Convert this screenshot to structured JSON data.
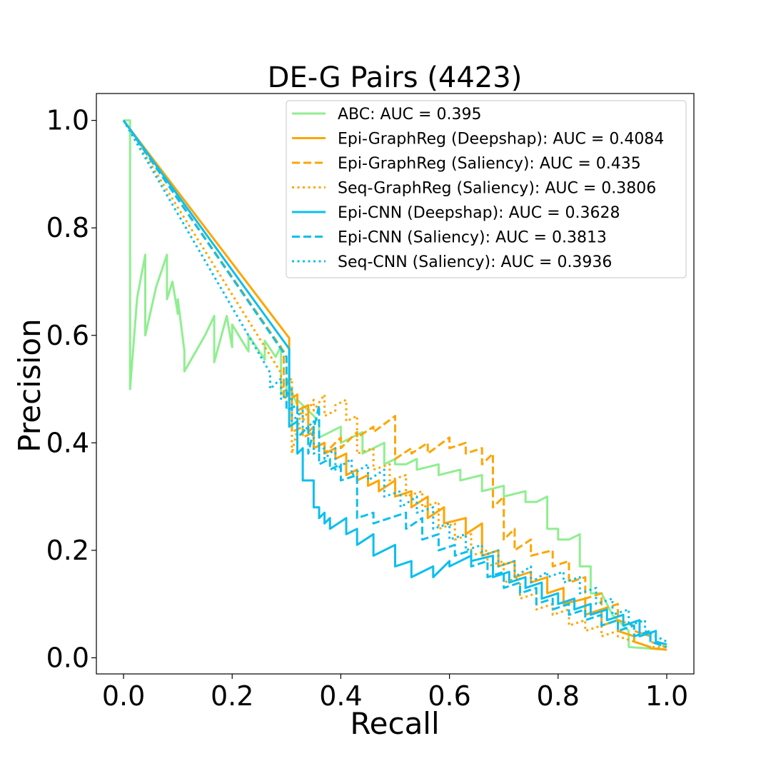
{
  "chart_data": {
    "type": "line",
    "title": "DE-G Pairs (4423)",
    "xlabel": "Recall",
    "ylabel": "Precision",
    "xlim": [
      -0.05,
      1.05
    ],
    "ylim": [
      -0.03,
      1.05
    ],
    "xticks": [
      "0.0",
      "0.2",
      "0.4",
      "0.6",
      "0.8",
      "1.0"
    ],
    "yticks": [
      "0.0",
      "0.2",
      "0.4",
      "0.6",
      "0.8",
      "1.0"
    ],
    "grid": false,
    "legend_position": "top-right",
    "series": [
      {
        "name": "ABC: AUC = 0.395",
        "color": "#90ee90",
        "style": "solid",
        "x": [
          0.0,
          0.012,
          0.012,
          0.025,
          0.04,
          0.04,
          0.06,
          0.08,
          0.08,
          0.09,
          0.1,
          0.1,
          0.112,
          0.112,
          0.15,
          0.167,
          0.167,
          0.19,
          0.2,
          0.2,
          0.23,
          0.23,
          0.26,
          0.26,
          0.28,
          0.29,
          0.29,
          0.3,
          0.3,
          0.32,
          0.32,
          0.34,
          0.36,
          0.36,
          0.38,
          0.4,
          0.4,
          0.42,
          0.44,
          0.44,
          0.46,
          0.48,
          0.48,
          0.5,
          0.5,
          0.52,
          0.54,
          0.54,
          0.56,
          0.58,
          0.58,
          0.6,
          0.62,
          0.62,
          0.64,
          0.66,
          0.66,
          0.68,
          0.7,
          0.7,
          0.72,
          0.74,
          0.74,
          0.76,
          0.78,
          0.78,
          0.8,
          0.8,
          0.82,
          0.84,
          0.84,
          0.86,
          0.86,
          0.88,
          0.9,
          0.92,
          0.93,
          0.93,
          0.96,
          1.0
        ],
        "y": [
          1.0,
          1.0,
          0.5,
          0.67,
          0.75,
          0.6,
          0.69,
          0.75,
          0.667,
          0.7,
          0.64,
          0.667,
          0.571,
          0.533,
          0.6,
          0.636,
          0.55,
          0.636,
          0.578,
          0.62,
          0.57,
          0.6,
          0.555,
          0.59,
          0.56,
          0.58,
          0.49,
          0.5,
          0.52,
          0.47,
          0.48,
          0.46,
          0.44,
          0.41,
          0.42,
          0.43,
          0.4,
          0.41,
          0.42,
          0.38,
          0.39,
          0.4,
          0.36,
          0.37,
          0.36,
          0.36,
          0.37,
          0.35,
          0.355,
          0.36,
          0.34,
          0.345,
          0.35,
          0.33,
          0.335,
          0.34,
          0.31,
          0.315,
          0.32,
          0.3,
          0.305,
          0.31,
          0.29,
          0.29,
          0.3,
          0.24,
          0.24,
          0.22,
          0.22,
          0.23,
          0.17,
          0.17,
          0.12,
          0.12,
          0.08,
          0.06,
          0.05,
          0.02,
          0.018,
          0.015
        ]
      },
      {
        "name": "Epi-GraphReg (Deepshap): AUC = 0.4084",
        "color": "#ffa500",
        "style": "solid",
        "x": [
          0.0,
          0.305,
          0.305,
          0.32,
          0.32,
          0.34,
          0.34,
          0.35,
          0.35,
          0.37,
          0.37,
          0.39,
          0.39,
          0.41,
          0.41,
          0.43,
          0.43,
          0.45,
          0.45,
          0.47,
          0.47,
          0.5,
          0.5,
          0.53,
          0.53,
          0.56,
          0.56,
          0.59,
          0.59,
          0.63,
          0.63,
          0.66,
          0.66,
          0.69,
          0.69,
          0.72,
          0.72,
          0.75,
          0.75,
          0.78,
          0.78,
          0.81,
          0.81,
          0.85,
          0.85,
          0.88,
          0.88,
          0.91,
          0.91,
          0.94,
          0.94,
          0.97,
          0.97,
          1.0
        ],
        "y": [
          1.0,
          0.595,
          0.48,
          0.49,
          0.46,
          0.47,
          0.42,
          0.43,
          0.39,
          0.4,
          0.38,
          0.39,
          0.37,
          0.38,
          0.34,
          0.35,
          0.33,
          0.34,
          0.32,
          0.33,
          0.31,
          0.33,
          0.3,
          0.31,
          0.28,
          0.3,
          0.26,
          0.28,
          0.25,
          0.26,
          0.23,
          0.25,
          0.19,
          0.2,
          0.17,
          0.18,
          0.15,
          0.16,
          0.14,
          0.15,
          0.12,
          0.13,
          0.1,
          0.11,
          0.08,
          0.09,
          0.06,
          0.07,
          0.05,
          0.04,
          0.03,
          0.02,
          0.018,
          0.015
        ]
      },
      {
        "name": "Epi-GraphReg (Saliency): AUC = 0.435",
        "color": "#ffa500",
        "style": "dashed",
        "x": [
          0.0,
          0.295,
          0.295,
          0.31,
          0.31,
          0.33,
          0.33,
          0.35,
          0.35,
          0.37,
          0.37,
          0.4,
          0.4,
          0.43,
          0.43,
          0.46,
          0.46,
          0.5,
          0.5,
          0.53,
          0.53,
          0.56,
          0.56,
          0.6,
          0.6,
          0.63,
          0.63,
          0.66,
          0.66,
          0.68,
          0.68,
          0.7,
          0.7,
          0.72,
          0.72,
          0.75,
          0.75,
          0.79,
          0.79,
          0.82,
          0.82,
          0.85,
          0.85,
          0.88,
          0.88,
          0.91,
          0.91,
          0.94,
          0.94,
          0.97,
          0.97,
          1.0
        ],
        "y": [
          1.0,
          0.57,
          0.48,
          0.5,
          0.42,
          0.43,
          0.41,
          0.42,
          0.39,
          0.4,
          0.38,
          0.41,
          0.39,
          0.42,
          0.41,
          0.43,
          0.42,
          0.45,
          0.37,
          0.39,
          0.38,
          0.4,
          0.38,
          0.41,
          0.39,
          0.4,
          0.38,
          0.39,
          0.36,
          0.38,
          0.28,
          0.3,
          0.22,
          0.24,
          0.2,
          0.22,
          0.19,
          0.2,
          0.17,
          0.18,
          0.14,
          0.15,
          0.11,
          0.12,
          0.09,
          0.1,
          0.07,
          0.06,
          0.05,
          0.04,
          0.03,
          0.02
        ]
      },
      {
        "name": "Seq-GraphReg (Saliency): AUC = 0.3806",
        "color": "#ffa500",
        "style": "dotted",
        "x": [
          0.0,
          0.29,
          0.29,
          0.31,
          0.31,
          0.33,
          0.33,
          0.35,
          0.35,
          0.37,
          0.37,
          0.39,
          0.39,
          0.41,
          0.41,
          0.43,
          0.43,
          0.46,
          0.46,
          0.49,
          0.49,
          0.52,
          0.52,
          0.55,
          0.55,
          0.58,
          0.58,
          0.61,
          0.61,
          0.64,
          0.64,
          0.67,
          0.67,
          0.7,
          0.7,
          0.73,
          0.73,
          0.76,
          0.76,
          0.79,
          0.79,
          0.82,
          0.82,
          0.85,
          0.85,
          0.88,
          0.88,
          0.91,
          0.91,
          0.94,
          0.94,
          0.97,
          0.97,
          1.0
        ],
        "y": [
          1.0,
          0.53,
          0.5,
          0.52,
          0.38,
          0.47,
          0.44,
          0.48,
          0.46,
          0.49,
          0.45,
          0.46,
          0.47,
          0.48,
          0.44,
          0.45,
          0.38,
          0.39,
          0.35,
          0.36,
          0.33,
          0.34,
          0.3,
          0.31,
          0.28,
          0.29,
          0.24,
          0.25,
          0.22,
          0.23,
          0.19,
          0.2,
          0.17,
          0.18,
          0.14,
          0.15,
          0.11,
          0.12,
          0.09,
          0.1,
          0.08,
          0.09,
          0.06,
          0.07,
          0.05,
          0.06,
          0.04,
          0.05,
          0.04,
          0.03,
          0.03,
          0.02,
          0.02,
          0.02
        ]
      },
      {
        "name": "Epi-CNN (Deepshap): AUC = 0.3628",
        "color": "#0cbfef",
        "style": "solid",
        "x": [
          0.0,
          0.305,
          0.305,
          0.32,
          0.32,
          0.33,
          0.33,
          0.35,
          0.35,
          0.36,
          0.36,
          0.37,
          0.37,
          0.38,
          0.38,
          0.41,
          0.41,
          0.43,
          0.43,
          0.46,
          0.46,
          0.5,
          0.5,
          0.53,
          0.53,
          0.57,
          0.57,
          0.6,
          0.6,
          0.64,
          0.64,
          0.68,
          0.68,
          0.71,
          0.71,
          0.74,
          0.74,
          0.77,
          0.77,
          0.8,
          0.8,
          0.83,
          0.83,
          0.86,
          0.86,
          0.89,
          0.89,
          0.92,
          0.92,
          0.95,
          0.95,
          0.98,
          0.98,
          1.0
        ],
        "y": [
          1.0,
          0.575,
          0.43,
          0.44,
          0.38,
          0.39,
          0.33,
          0.33,
          0.28,
          0.28,
          0.26,
          0.27,
          0.25,
          0.26,
          0.24,
          0.26,
          0.23,
          0.24,
          0.21,
          0.23,
          0.19,
          0.21,
          0.17,
          0.18,
          0.15,
          0.17,
          0.15,
          0.18,
          0.17,
          0.19,
          0.18,
          0.19,
          0.15,
          0.16,
          0.14,
          0.15,
          0.13,
          0.14,
          0.11,
          0.12,
          0.1,
          0.11,
          0.09,
          0.1,
          0.08,
          0.09,
          0.07,
          0.08,
          0.06,
          0.07,
          0.04,
          0.05,
          0.03,
          0.025
        ]
      },
      {
        "name": "Epi-CNN (Saliency): AUC = 0.3813",
        "color": "#0cbfef",
        "style": "dashed",
        "x": [
          0.0,
          0.3,
          0.3,
          0.32,
          0.32,
          0.34,
          0.34,
          0.36,
          0.36,
          0.38,
          0.38,
          0.4,
          0.4,
          0.43,
          0.43,
          0.46,
          0.46,
          0.49,
          0.49,
          0.52,
          0.52,
          0.55,
          0.55,
          0.58,
          0.58,
          0.61,
          0.61,
          0.64,
          0.64,
          0.67,
          0.67,
          0.7,
          0.7,
          0.73,
          0.73,
          0.76,
          0.76,
          0.79,
          0.79,
          0.82,
          0.82,
          0.85,
          0.85,
          0.88,
          0.88,
          0.91,
          0.91,
          0.94,
          0.94,
          0.97,
          0.97,
          1.0
        ],
        "y": [
          1.0,
          0.56,
          0.46,
          0.47,
          0.41,
          0.43,
          0.38,
          0.47,
          0.36,
          0.37,
          0.35,
          0.36,
          0.33,
          0.34,
          0.26,
          0.27,
          0.25,
          0.26,
          0.26,
          0.27,
          0.24,
          0.26,
          0.22,
          0.23,
          0.2,
          0.21,
          0.19,
          0.2,
          0.17,
          0.18,
          0.15,
          0.16,
          0.13,
          0.14,
          0.12,
          0.13,
          0.1,
          0.11,
          0.09,
          0.1,
          0.08,
          0.09,
          0.07,
          0.08,
          0.06,
          0.07,
          0.05,
          0.06,
          0.04,
          0.05,
          0.03,
          0.02
        ]
      },
      {
        "name": "Seq-CNN (Saliency): AUC = 0.3936",
        "color": "#0cbfef",
        "style": "dotted",
        "x": [
          0.0,
          0.27,
          0.27,
          0.29,
          0.29,
          0.31,
          0.31,
          0.33,
          0.33,
          0.35,
          0.35,
          0.37,
          0.37,
          0.39,
          0.39,
          0.42,
          0.42,
          0.45,
          0.45,
          0.48,
          0.48,
          0.51,
          0.51,
          0.54,
          0.54,
          0.57,
          0.57,
          0.6,
          0.6,
          0.63,
          0.63,
          0.66,
          0.66,
          0.69,
          0.69,
          0.72,
          0.72,
          0.75,
          0.75,
          0.78,
          0.78,
          0.81,
          0.81,
          0.84,
          0.84,
          0.87,
          0.87,
          0.9,
          0.9,
          0.93,
          0.93,
          0.96,
          0.96,
          1.0
        ],
        "y": [
          1.0,
          0.53,
          0.5,
          0.52,
          0.48,
          0.5,
          0.44,
          0.46,
          0.42,
          0.44,
          0.38,
          0.39,
          0.37,
          0.39,
          0.35,
          0.37,
          0.34,
          0.36,
          0.33,
          0.35,
          0.3,
          0.31,
          0.28,
          0.3,
          0.27,
          0.28,
          0.24,
          0.25,
          0.22,
          0.23,
          0.2,
          0.21,
          0.19,
          0.2,
          0.17,
          0.18,
          0.15,
          0.17,
          0.14,
          0.16,
          0.15,
          0.16,
          0.14,
          0.15,
          0.12,
          0.13,
          0.1,
          0.11,
          0.08,
          0.09,
          0.06,
          0.07,
          0.05,
          0.03
        ]
      }
    ]
  }
}
